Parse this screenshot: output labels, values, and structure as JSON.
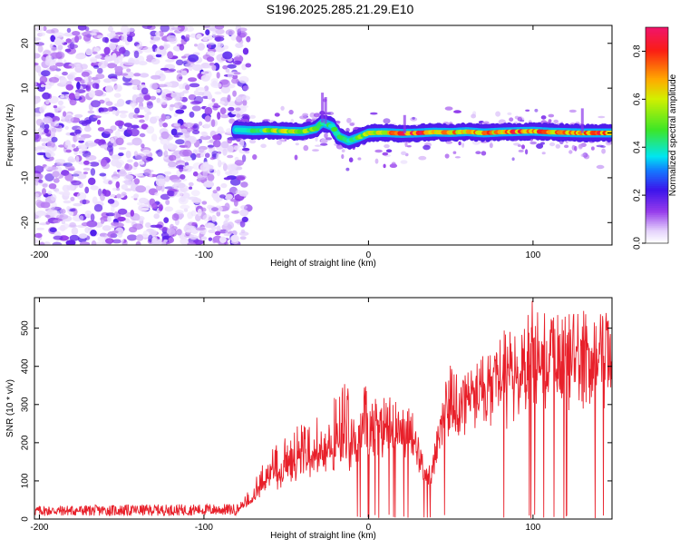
{
  "title": "S196.2025.285.21.29.E10",
  "chart_data": [
    {
      "type": "heatmap",
      "name": "spectrogram",
      "xlabel": "Height of straight line (km)",
      "ylabel": "Frequency (Hz)",
      "xlim": [
        -203,
        148
      ],
      "ylim": [
        -25,
        24
      ],
      "xticks": [
        -200,
        -100,
        0,
        100
      ],
      "yticks": [
        -20,
        -10,
        0,
        10,
        20
      ],
      "colorbar": {
        "label": "Normalized spectral amplitude",
        "range": [
          0,
          0.9
        ],
        "ticks": [
          0.0,
          0.2,
          0.4,
          0.6,
          0.8
        ],
        "tick_labels": [
          "0.0",
          "0.2",
          "0.4",
          "0.6",
          "0.8"
        ]
      },
      "noise_region": {
        "x_range": [
          -203,
          -73
        ],
        "amplitude_range": [
          0.03,
          0.12
        ]
      },
      "ridge": [
        {
          "x": -80,
          "y": 0.7,
          "v": 0.25
        },
        {
          "x": -70,
          "y": 0.5,
          "v": 0.45
        },
        {
          "x": -60,
          "y": 0.6,
          "v": 0.55
        },
        {
          "x": -50,
          "y": 0.4,
          "v": 0.6
        },
        {
          "x": -40,
          "y": 0.3,
          "v": 0.6
        },
        {
          "x": -32,
          "y": 1.0,
          "v": 0.55
        },
        {
          "x": -28,
          "y": 2.3,
          "v": 0.4
        },
        {
          "x": -22,
          "y": 1.5,
          "v": 0.45
        },
        {
          "x": -18,
          "y": -0.8,
          "v": 0.45
        },
        {
          "x": -12,
          "y": -1.8,
          "v": 0.4
        },
        {
          "x": -6,
          "y": -1.0,
          "v": 0.5
        },
        {
          "x": 0,
          "y": 0.0,
          "v": 0.65
        },
        {
          "x": 10,
          "y": 0.1,
          "v": 0.7
        },
        {
          "x": 20,
          "y": -0.1,
          "v": 0.8
        },
        {
          "x": 30,
          "y": 0.0,
          "v": 0.85
        },
        {
          "x": 40,
          "y": 0.2,
          "v": 0.7
        },
        {
          "x": 50,
          "y": 0.1,
          "v": 0.75
        },
        {
          "x": 60,
          "y": 0.3,
          "v": 0.7
        },
        {
          "x": 70,
          "y": 0.0,
          "v": 0.75
        },
        {
          "x": 80,
          "y": 0.2,
          "v": 0.7
        },
        {
          "x": 90,
          "y": 0.3,
          "v": 0.8
        },
        {
          "x": 100,
          "y": 0.4,
          "v": 0.8
        },
        {
          "x": 110,
          "y": 0.2,
          "v": 0.75
        },
        {
          "x": 120,
          "y": 0.1,
          "v": 0.7
        },
        {
          "x": 130,
          "y": 0.0,
          "v": 0.75
        },
        {
          "x": 140,
          "y": 0.0,
          "v": 0.8
        },
        {
          "x": 148,
          "y": 0.0,
          "v": 0.8
        }
      ],
      "spikes": [
        {
          "x": -28,
          "y_top": 9.0
        },
        {
          "x": -26,
          "y_top": 8.0
        },
        {
          "x": 22,
          "y_top": 4.0
        },
        {
          "x": 130,
          "y_top": 5.5
        }
      ]
    },
    {
      "type": "line",
      "name": "snr",
      "xlabel": "Height of straight line (km)",
      "ylabel": "SNR (10 * v/v)",
      "xlim": [
        -203,
        148
      ],
      "ylim": [
        0,
        580
      ],
      "xticks": [
        -200,
        -100,
        0,
        100
      ],
      "yticks": [
        0,
        100,
        200,
        300,
        400,
        500
      ],
      "color": "#e8202a",
      "envelope": [
        {
          "x": -203,
          "base": 18,
          "peak": 35
        },
        {
          "x": -140,
          "base": 18,
          "peak": 38
        },
        {
          "x": -80,
          "base": 20,
          "peak": 40
        },
        {
          "x": -72,
          "base": 40,
          "peak": 80
        },
        {
          "x": -60,
          "base": 90,
          "peak": 180
        },
        {
          "x": -40,
          "base": 130,
          "peak": 260
        },
        {
          "x": -20,
          "base": 150,
          "peak": 330
        },
        {
          "x": -10,
          "base": 160,
          "peak": 380
        },
        {
          "x": 0,
          "base": 210,
          "peak": 360
        },
        {
          "x": 15,
          "base": 230,
          "peak": 330
        },
        {
          "x": 25,
          "base": 200,
          "peak": 310
        },
        {
          "x": 32,
          "base": 130,
          "peak": 200
        },
        {
          "x": 38,
          "base": 100,
          "peak": 130
        },
        {
          "x": 45,
          "base": 250,
          "peak": 400
        },
        {
          "x": 60,
          "base": 300,
          "peak": 410
        },
        {
          "x": 75,
          "base": 310,
          "peak": 480
        },
        {
          "x": 90,
          "base": 320,
          "peak": 520
        },
        {
          "x": 100,
          "base": 380,
          "peak": 580
        },
        {
          "x": 115,
          "base": 400,
          "peak": 560
        },
        {
          "x": 130,
          "base": 380,
          "peak": 550
        },
        {
          "x": 148,
          "base": 400,
          "peak": 560
        }
      ]
    }
  ]
}
